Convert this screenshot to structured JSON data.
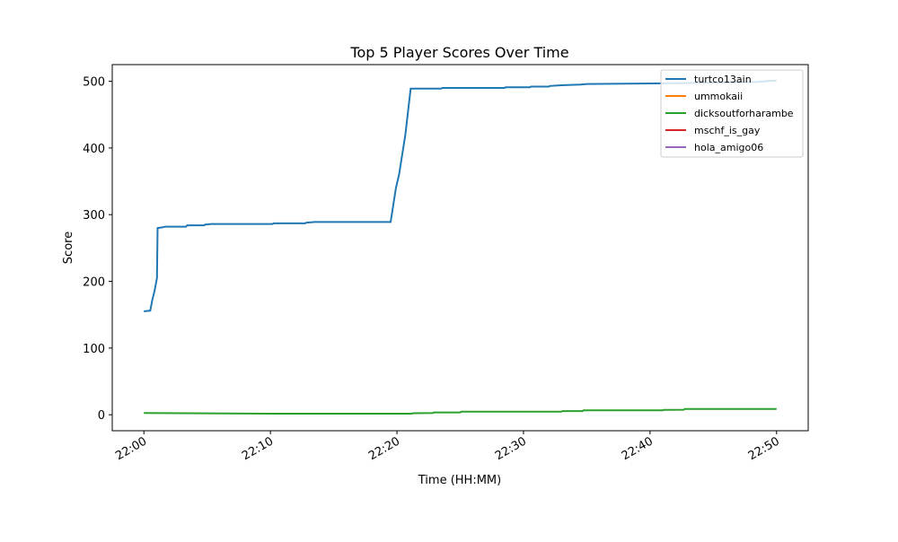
{
  "chart_data": {
    "type": "line",
    "title": "Top 5 Player Scores Over Time",
    "xlabel": "Time (HH:MM)",
    "ylabel": "Score",
    "xlim": [
      "21:57:30",
      "22:52:30"
    ],
    "ylim": [
      -24,
      525
    ],
    "xticks": [
      "22:00",
      "22:10",
      "22:20",
      "22:30",
      "22:40",
      "22:50"
    ],
    "yticks": [
      0,
      100,
      200,
      300,
      400,
      500
    ],
    "grid": false,
    "legend_placement": "upper right",
    "series": [
      {
        "name": "turtco13ain",
        "color": "#1f77b4",
        "points": [
          [
            "22:00:00",
            155
          ],
          [
            "22:00:25",
            156
          ],
          [
            "22:00:30",
            156
          ],
          [
            "22:00:40",
            172
          ],
          [
            "22:00:50",
            185
          ],
          [
            "22:01:02",
            205
          ],
          [
            "22:01:05",
            280
          ],
          [
            "22:01:30",
            281
          ],
          [
            "22:01:40",
            282
          ],
          [
            "22:03:20",
            282
          ],
          [
            "22:03:25",
            284
          ],
          [
            "22:04:45",
            284
          ],
          [
            "22:04:50",
            285
          ],
          [
            "22:05:20",
            286
          ],
          [
            "22:10:10",
            286
          ],
          [
            "22:10:15",
            287
          ],
          [
            "22:12:45",
            287
          ],
          [
            "22:12:50",
            288
          ],
          [
            "22:13:30",
            289
          ],
          [
            "22:19:30",
            289
          ],
          [
            "22:19:55",
            340
          ],
          [
            "22:20:10",
            360
          ],
          [
            "22:20:40",
            420
          ],
          [
            "22:21:05",
            489
          ],
          [
            "22:23:30",
            489
          ],
          [
            "22:23:35",
            490
          ],
          [
            "22:28:30",
            490
          ],
          [
            "22:28:35",
            491
          ],
          [
            "22:30:30",
            491
          ],
          [
            "22:30:35",
            492
          ],
          [
            "22:32:00",
            492
          ],
          [
            "22:32:05",
            493
          ],
          [
            "22:33:00",
            494
          ],
          [
            "22:34:30",
            495
          ],
          [
            "22:35:00",
            496
          ],
          [
            "22:42:00",
            497
          ],
          [
            "22:45:00",
            498
          ],
          [
            "22:48:30",
            499
          ],
          [
            "22:49:00",
            500
          ],
          [
            "22:50:00",
            501
          ]
        ]
      },
      {
        "name": "ummokaii",
        "color": "#ff7f0e",
        "points": []
      },
      {
        "name": "dicksoutforharambe",
        "color": "#2ca02c",
        "points": [
          [
            "22:00:00",
            2.5
          ],
          [
            "22:10:00",
            1.5
          ],
          [
            "22:21:10",
            1.5
          ],
          [
            "22:21:15",
            2.2
          ],
          [
            "22:22:50",
            2.5
          ],
          [
            "22:22:55",
            3.5
          ],
          [
            "22:25:00",
            3.5
          ],
          [
            "22:25:05",
            4.5
          ],
          [
            "22:33:00",
            4.5
          ],
          [
            "22:33:05",
            5.5
          ],
          [
            "22:34:40",
            5.5
          ],
          [
            "22:34:45",
            6.5
          ],
          [
            "22:41:00",
            6.5
          ],
          [
            "22:41:05",
            7.3
          ],
          [
            "22:42:40",
            7.5
          ],
          [
            "22:42:45",
            8.5
          ],
          [
            "22:50:00",
            8.5
          ]
        ]
      },
      {
        "name": "mschf_is_gay",
        "color": "#d62728",
        "points": []
      },
      {
        "name": "hola_amigo06",
        "color": "#9467bd",
        "points": []
      }
    ]
  }
}
